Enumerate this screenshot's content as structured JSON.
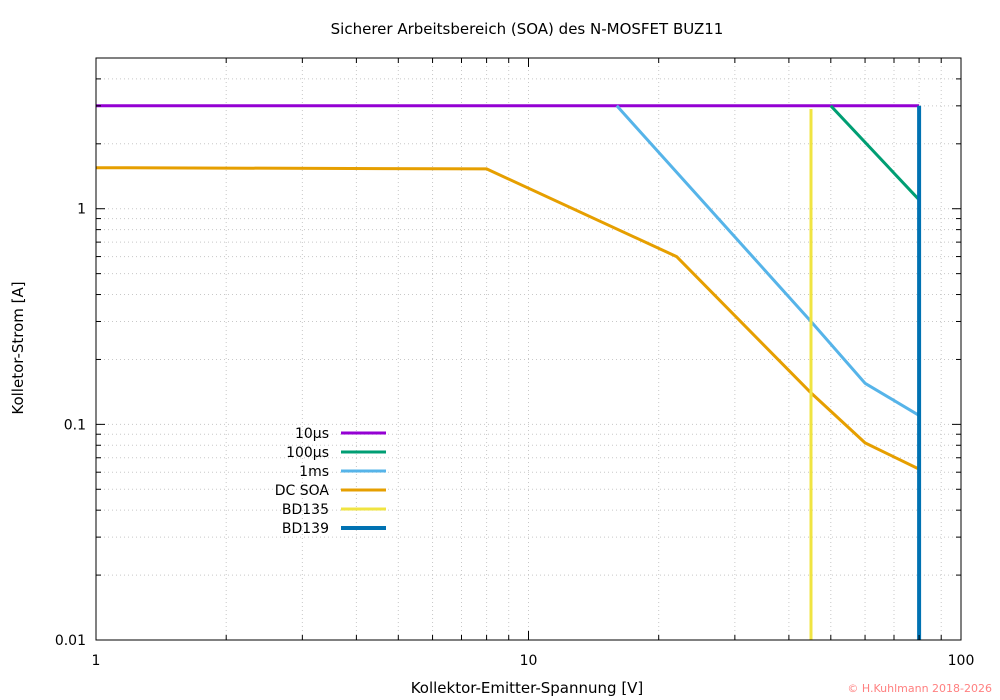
{
  "chart_data": {
    "type": "line",
    "title": "Sicherer Arbeitsbereich (SOA) des N-MOSFET BUZ11",
    "xlabel": "Kollektor-Emitter-Spannung [V]",
    "ylabel": "Kolletor-Strom [A]",
    "x_scale": "log",
    "y_scale": "log",
    "xlim": [
      1,
      100
    ],
    "ylim": [
      0.01,
      5
    ],
    "grid": true,
    "legend_position": "center-left",
    "x_ticks": [
      {
        "value": 1,
        "label": "1"
      },
      {
        "value": 10,
        "label": "10"
      },
      {
        "value": 100,
        "label": "100"
      }
    ],
    "y_ticks": [
      {
        "value": 0.01,
        "label": "0.01"
      },
      {
        "value": 0.1,
        "label": "0.1"
      },
      {
        "value": 1,
        "label": "1"
      }
    ],
    "series": [
      {
        "name": "10µs",
        "color": "#9400d3",
        "width": 3,
        "points": [
          [
            1,
            3
          ],
          [
            80,
            3
          ]
        ]
      },
      {
        "name": "100µs",
        "color": "#009e73",
        "width": 3,
        "points": [
          [
            50,
            3
          ],
          [
            80,
            1.1
          ]
        ]
      },
      {
        "name": "1ms",
        "color": "#56b4e9",
        "width": 3,
        "points": [
          [
            16,
            3
          ],
          [
            45,
            0.3
          ],
          [
            60,
            0.155
          ],
          [
            80,
            0.11
          ]
        ]
      },
      {
        "name": "DC SOA",
        "color": "#e69f00",
        "width": 3,
        "points": [
          [
            1,
            1.55
          ],
          [
            8,
            1.53
          ],
          [
            22,
            0.6
          ],
          [
            45,
            0.14
          ],
          [
            60,
            0.082
          ],
          [
            80,
            0.062
          ]
        ]
      },
      {
        "name": "BD135",
        "color": "#f0e442",
        "width": 3,
        "points": [
          [
            45,
            0.01
          ],
          [
            45,
            2.9
          ]
        ]
      },
      {
        "name": "BD139",
        "color": "#0072b2",
        "width": 4,
        "points": [
          [
            80,
            0.01
          ],
          [
            80,
            3
          ]
        ]
      }
    ]
  },
  "footer": {
    "copyright": "© H.Kuhlmann 2018-2026"
  }
}
